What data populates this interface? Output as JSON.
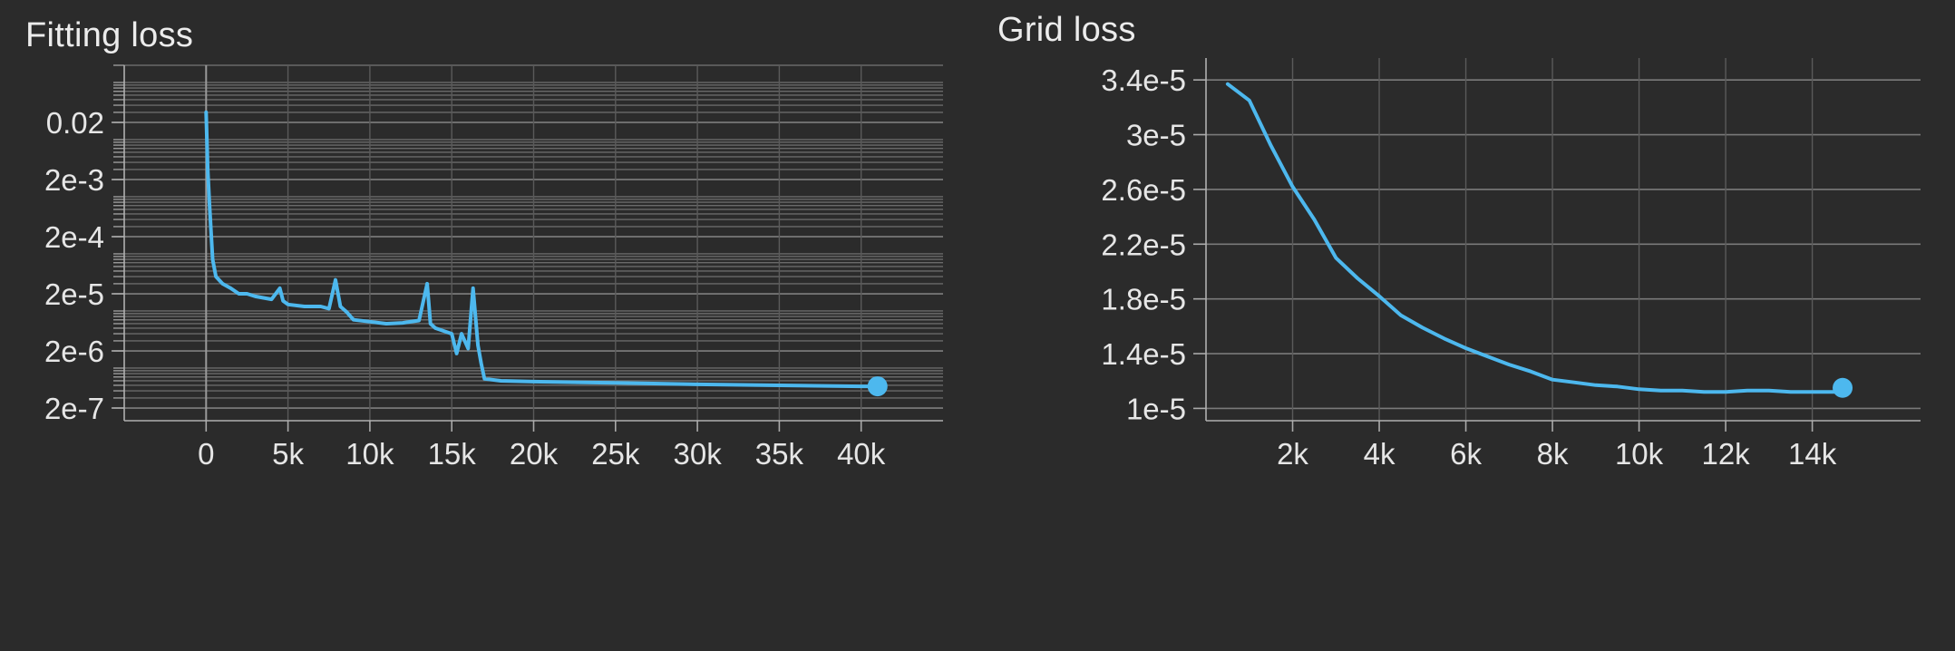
{
  "chart_data": [
    {
      "type": "line",
      "title": "Fitting loss",
      "xlabel": "",
      "ylabel": "",
      "yscale": "log",
      "xlim": [
        -5000,
        45000
      ],
      "ylim": [
        1.2e-07,
        0.2
      ],
      "grid": true,
      "x_ticks": [
        {
          "value": 0,
          "label": "0"
        },
        {
          "value": 5000,
          "label": "5k"
        },
        {
          "value": 10000,
          "label": "10k"
        },
        {
          "value": 15000,
          "label": "15k"
        },
        {
          "value": 20000,
          "label": "20k"
        },
        {
          "value": 25000,
          "label": "25k"
        },
        {
          "value": 30000,
          "label": "30k"
        },
        {
          "value": 35000,
          "label": "35k"
        },
        {
          "value": 40000,
          "label": "40k"
        }
      ],
      "y_ticks": [
        {
          "value": 0.02,
          "label": "0.02"
        },
        {
          "value": 0.002,
          "label": "2e-3"
        },
        {
          "value": 0.0002,
          "label": "2e-4"
        },
        {
          "value": 2e-05,
          "label": "2e-5"
        },
        {
          "value": 2e-06,
          "label": "2e-6"
        },
        {
          "value": 2e-07,
          "label": "2e-7"
        }
      ],
      "series": [
        {
          "color": "#4db8ee",
          "x": [
            0,
            100,
            200,
            400,
            600,
            1000,
            1500,
            2000,
            2500,
            3000,
            3500,
            4000,
            4500,
            4700,
            5000,
            6000,
            7000,
            7500,
            7900,
            8200,
            8600,
            9000,
            10000,
            11000,
            12000,
            13000,
            13500,
            13700,
            14000,
            15000,
            15300,
            15600,
            16000,
            16300,
            16600,
            16800,
            17000,
            18000,
            20000,
            25000,
            30000,
            35000,
            40000,
            41000
          ],
          "y": [
            0.03,
            0.003,
            0.0008,
            8e-05,
            4e-05,
            3e-05,
            2.5e-05,
            2e-05,
            2e-05,
            1.8e-05,
            1.7e-05,
            1.6e-05,
            2.5e-05,
            1.5e-05,
            1.3e-05,
            1.2e-05,
            1.2e-05,
            1.1e-05,
            3.5e-05,
            1.2e-05,
            9.5e-06,
            7e-06,
            6.5e-06,
            6e-06,
            6.2e-06,
            6.8e-06,
            3e-05,
            6e-06,
            5e-06,
            4e-06,
            1.8e-06,
            4e-06,
            2.2e-06,
            2.5e-05,
            2.5e-06,
            1.2e-06,
            6.5e-07,
            6e-07,
            5.8e-07,
            5.5e-07,
            5.2e-07,
            5e-07,
            4.8e-07,
            4.8e-07
          ]
        }
      ]
    },
    {
      "type": "line",
      "title": "Grid loss",
      "xlabel": "",
      "ylabel": "",
      "yscale": "linear",
      "xlim": [
        0,
        16500
      ],
      "ylim": [
        9.1e-06,
        3.56e-05
      ],
      "grid": true,
      "x_ticks": [
        {
          "value": 2000,
          "label": "2k"
        },
        {
          "value": 4000,
          "label": "4k"
        },
        {
          "value": 6000,
          "label": "6k"
        },
        {
          "value": 8000,
          "label": "8k"
        },
        {
          "value": 10000,
          "label": "10k"
        },
        {
          "value": 12000,
          "label": "12k"
        },
        {
          "value": 14000,
          "label": "14k"
        }
      ],
      "y_ticks": [
        {
          "value": 3.4e-05,
          "label": "3.4e-5"
        },
        {
          "value": 3e-05,
          "label": "3e-5"
        },
        {
          "value": 2.6e-05,
          "label": "2.6e-5"
        },
        {
          "value": 2.2e-05,
          "label": "2.2e-5"
        },
        {
          "value": 1.8e-05,
          "label": "1.8e-5"
        },
        {
          "value": 1.4e-05,
          "label": "1.4e-5"
        },
        {
          "value": 1e-05,
          "label": "1e-5"
        }
      ],
      "series": [
        {
          "color": "#4db8ee",
          "x": [
            500,
            1000,
            1500,
            2000,
            2500,
            3000,
            3500,
            4000,
            4500,
            5000,
            5500,
            6000,
            6500,
            7000,
            7500,
            8000,
            8500,
            9000,
            9500,
            10000,
            10500,
            11000,
            11500,
            12000,
            12500,
            13000,
            13500,
            14000,
            14500,
            14700
          ],
          "y": [
            3.37e-05,
            3.25e-05,
            2.92e-05,
            2.62e-05,
            2.38e-05,
            2.1e-05,
            1.95e-05,
            1.82e-05,
            1.68e-05,
            1.59e-05,
            1.51e-05,
            1.44e-05,
            1.38e-05,
            1.32e-05,
            1.27e-05,
            1.21e-05,
            1.19e-05,
            1.17e-05,
            1.16e-05,
            1.14e-05,
            1.13e-05,
            1.13e-05,
            1.12e-05,
            1.12e-05,
            1.13e-05,
            1.13e-05,
            1.12e-05,
            1.12e-05,
            1.12e-05,
            1.15e-05
          ]
        }
      ]
    }
  ]
}
